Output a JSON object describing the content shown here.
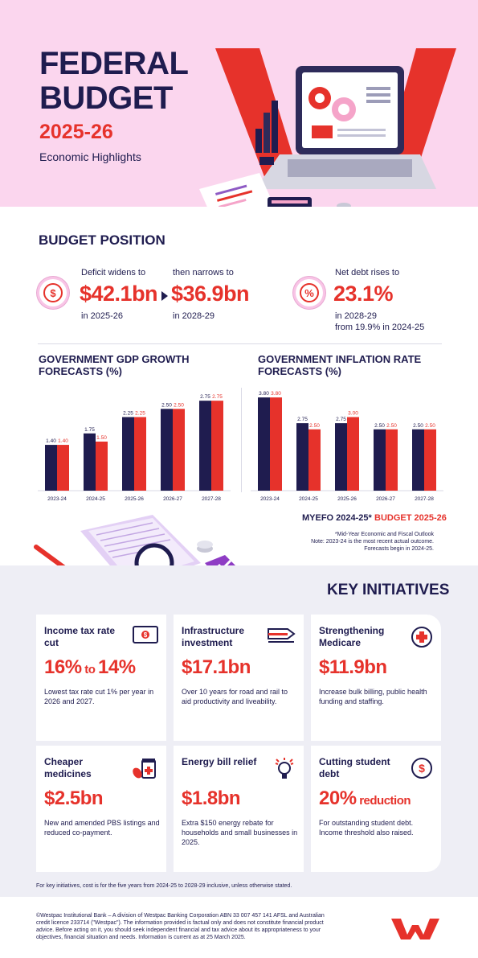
{
  "hero": {
    "title_line1": "FEDERAL",
    "title_line2": "BUDGET",
    "year": "2025-26",
    "subtitle": "Economic Highlights"
  },
  "budget_position": {
    "heading": "BUDGET POSITION",
    "deficit": {
      "label": "Deficit widens to",
      "value": "$42.1bn",
      "period": "in 2025-26",
      "icon": "dollar-icon"
    },
    "narrows": {
      "label": "then narrows to",
      "value": "$36.9bn",
      "period": "in 2028-29"
    },
    "net_debt": {
      "label": "Net debt rises to",
      "value": "23.1%",
      "period": "in 2028-29",
      "from": "from 19.9% in 2024-25",
      "icon": "percent-icon"
    }
  },
  "colors": {
    "navy": "#1f1c4f",
    "red": "#e6322b",
    "pink": "#fbd6ee",
    "grey_bg": "#eeeef5"
  },
  "chart_data": [
    {
      "type": "bar",
      "title": "GOVERNMENT GDP GROWTH FORECASTS (%)",
      "categories": [
        "2023-24",
        "2024-25",
        "2025-26",
        "2026-27",
        "2027-28"
      ],
      "series": [
        {
          "name": "MYEFO 2024-25*",
          "values": [
            1.4,
            1.75,
            2.25,
            2.5,
            2.75
          ],
          "labels": [
            "1.40",
            "1.75",
            "2.25",
            "2.50",
            "2.75"
          ]
        },
        {
          "name": "BUDGET 2025-26",
          "values": [
            1.4,
            1.5,
            2.25,
            2.5,
            2.75
          ],
          "labels": [
            "1.40",
            "1.50",
            "2.25",
            "2.50",
            "2.75"
          ]
        }
      ],
      "ylim": [
        0,
        3
      ]
    },
    {
      "type": "bar",
      "title": "GOVERNMENT INFLATION RATE FORECASTS (%)",
      "categories": [
        "2023-24",
        "2024-25",
        "2025-26",
        "2026-27",
        "2027-28"
      ],
      "series": [
        {
          "name": "MYEFO 2024-25*",
          "values": [
            3.8,
            2.75,
            2.75,
            2.5,
            2.5
          ],
          "labels": [
            "3.80",
            "2.75",
            "2.75",
            "2.50",
            "2.50"
          ]
        },
        {
          "name": "BUDGET 2025-26",
          "values": [
            3.8,
            2.5,
            3.0,
            2.5,
            2.5
          ],
          "labels": [
            "3.80",
            "2.50",
            "3.00",
            "2.50",
            "2.50"
          ]
        }
      ],
      "ylim": [
        0,
        4
      ]
    }
  ],
  "charts": {
    "gdp_title_line1": "GOVERNMENT GDP GROWTH",
    "gdp_title_line2": "FORECASTS (%)",
    "inflation_title_line1": "GOVERNMENT INFLATION RATE",
    "inflation_title_line2": "FORECASTS (%)",
    "legend_myefo": "MYEFO 2024-25*",
    "legend_budget": "BUDGET 2025-26",
    "note_line1": "*Mid-Year Economic and Fiscal Outlook",
    "note_line2": "Note: 2023-24 is the most recent actual outcome.",
    "note_line3": "Forecasts begin in 2024-25."
  },
  "key_initiatives": {
    "heading": "KEY INITIATIVES",
    "cards": [
      {
        "title": "Income tax rate cut",
        "value_main": "16%",
        "value_join": " to ",
        "value_end": "14%",
        "desc": "Lowest tax rate cut 1% per year in 2026 and 2027.",
        "icon": "cash-icon"
      },
      {
        "title": "Infrastructure investment",
        "value_main": "$17.1bn",
        "desc": "Over 10 years for road and rail to aid productivity and liveability.",
        "icon": "train-icon"
      },
      {
        "title": "Strengthening Medicare",
        "value_main": "$11.9bn",
        "desc": "Increase bulk billing, public health funding and staffing.",
        "icon": "medical-cross-icon"
      },
      {
        "title": "Cheaper medicines",
        "value_main": "$2.5bn",
        "desc": "New and amended PBS listings and reduced co-payment.",
        "icon": "medicine-icon"
      },
      {
        "title": "Energy bill relief",
        "value_main": "$1.8bn",
        "desc": "Extra $150 energy rebate for households and small businesses in 2025.",
        "icon": "lightbulb-icon"
      },
      {
        "title": "Cutting student debt",
        "value_main": "20%",
        "value_join": " reduction",
        "desc": "For outstanding student debt. Income threshold also raised.",
        "icon": "dollar-icon"
      }
    ]
  },
  "footnote": "For key initiatives, cost is for the five years from 2024-25 to 2028-29 inclusive, unless otherwise stated.",
  "disclaimer": "©Westpac Institutional Bank – A division of Westpac Banking Corporation ABN 33 007 457 141 AFSL and Australian credit licence 233714 (\"Westpac\"). The information provided is factual only and does not constitute financial product advice. Before acting on it, you should seek independent financial and tax advice about its appropriateness to your objectives, financial situation and needs. Information is current as at 25 March 2025."
}
